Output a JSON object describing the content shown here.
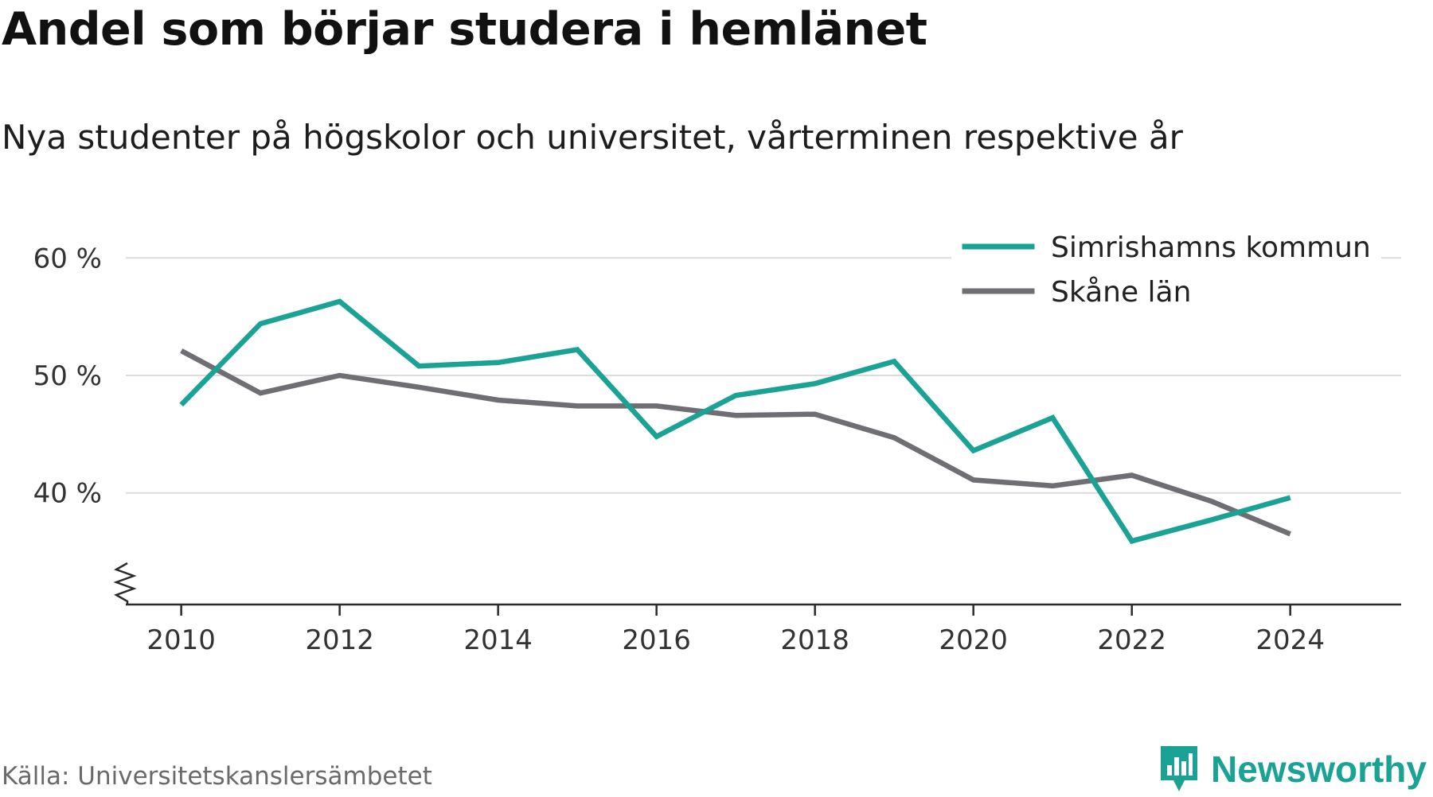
{
  "title": "Andel som börjar studera i hemlänet",
  "subtitle": "Nya studenter på högskolor och universitet, vårterminen respektive år",
  "source": "Källa: Universitetskanslersämbetet",
  "brand": "Newsworthy",
  "chart_data": {
    "type": "line",
    "x": [
      2010,
      2011,
      2012,
      2013,
      2014,
      2015,
      2016,
      2017,
      2018,
      2019,
      2020,
      2021,
      2022,
      2023,
      2024
    ],
    "xticks": [
      2010,
      2012,
      2014,
      2016,
      2018,
      2020,
      2022,
      2024
    ],
    "xtick_labels": [
      "2010",
      "2012",
      "2014",
      "2016",
      "2018",
      "2020",
      "2022",
      "2024"
    ],
    "yticks": [
      40,
      50,
      60
    ],
    "ytick_labels": [
      "40 %",
      "50 %",
      "60 %"
    ],
    "ylim": [
      30.5,
      63
    ],
    "xlim": [
      2009.3,
      2025.4
    ],
    "y_axis_break": true,
    "grid": true,
    "legend_position": "top-right",
    "series": [
      {
        "name": "Simrishamns kommun",
        "color": "#1aa394",
        "values": [
          47.5,
          54.4,
          56.3,
          50.8,
          51.1,
          52.2,
          44.8,
          48.3,
          49.3,
          51.2,
          43.6,
          46.4,
          35.9,
          37.7,
          39.6
        ]
      },
      {
        "name": "Skåne län",
        "color": "#6f6e73",
        "values": [
          52.1,
          48.5,
          50.0,
          49.0,
          47.9,
          47.4,
          47.4,
          46.6,
          46.7,
          44.7,
          41.1,
          40.6,
          41.5,
          39.3,
          36.5
        ]
      }
    ]
  }
}
